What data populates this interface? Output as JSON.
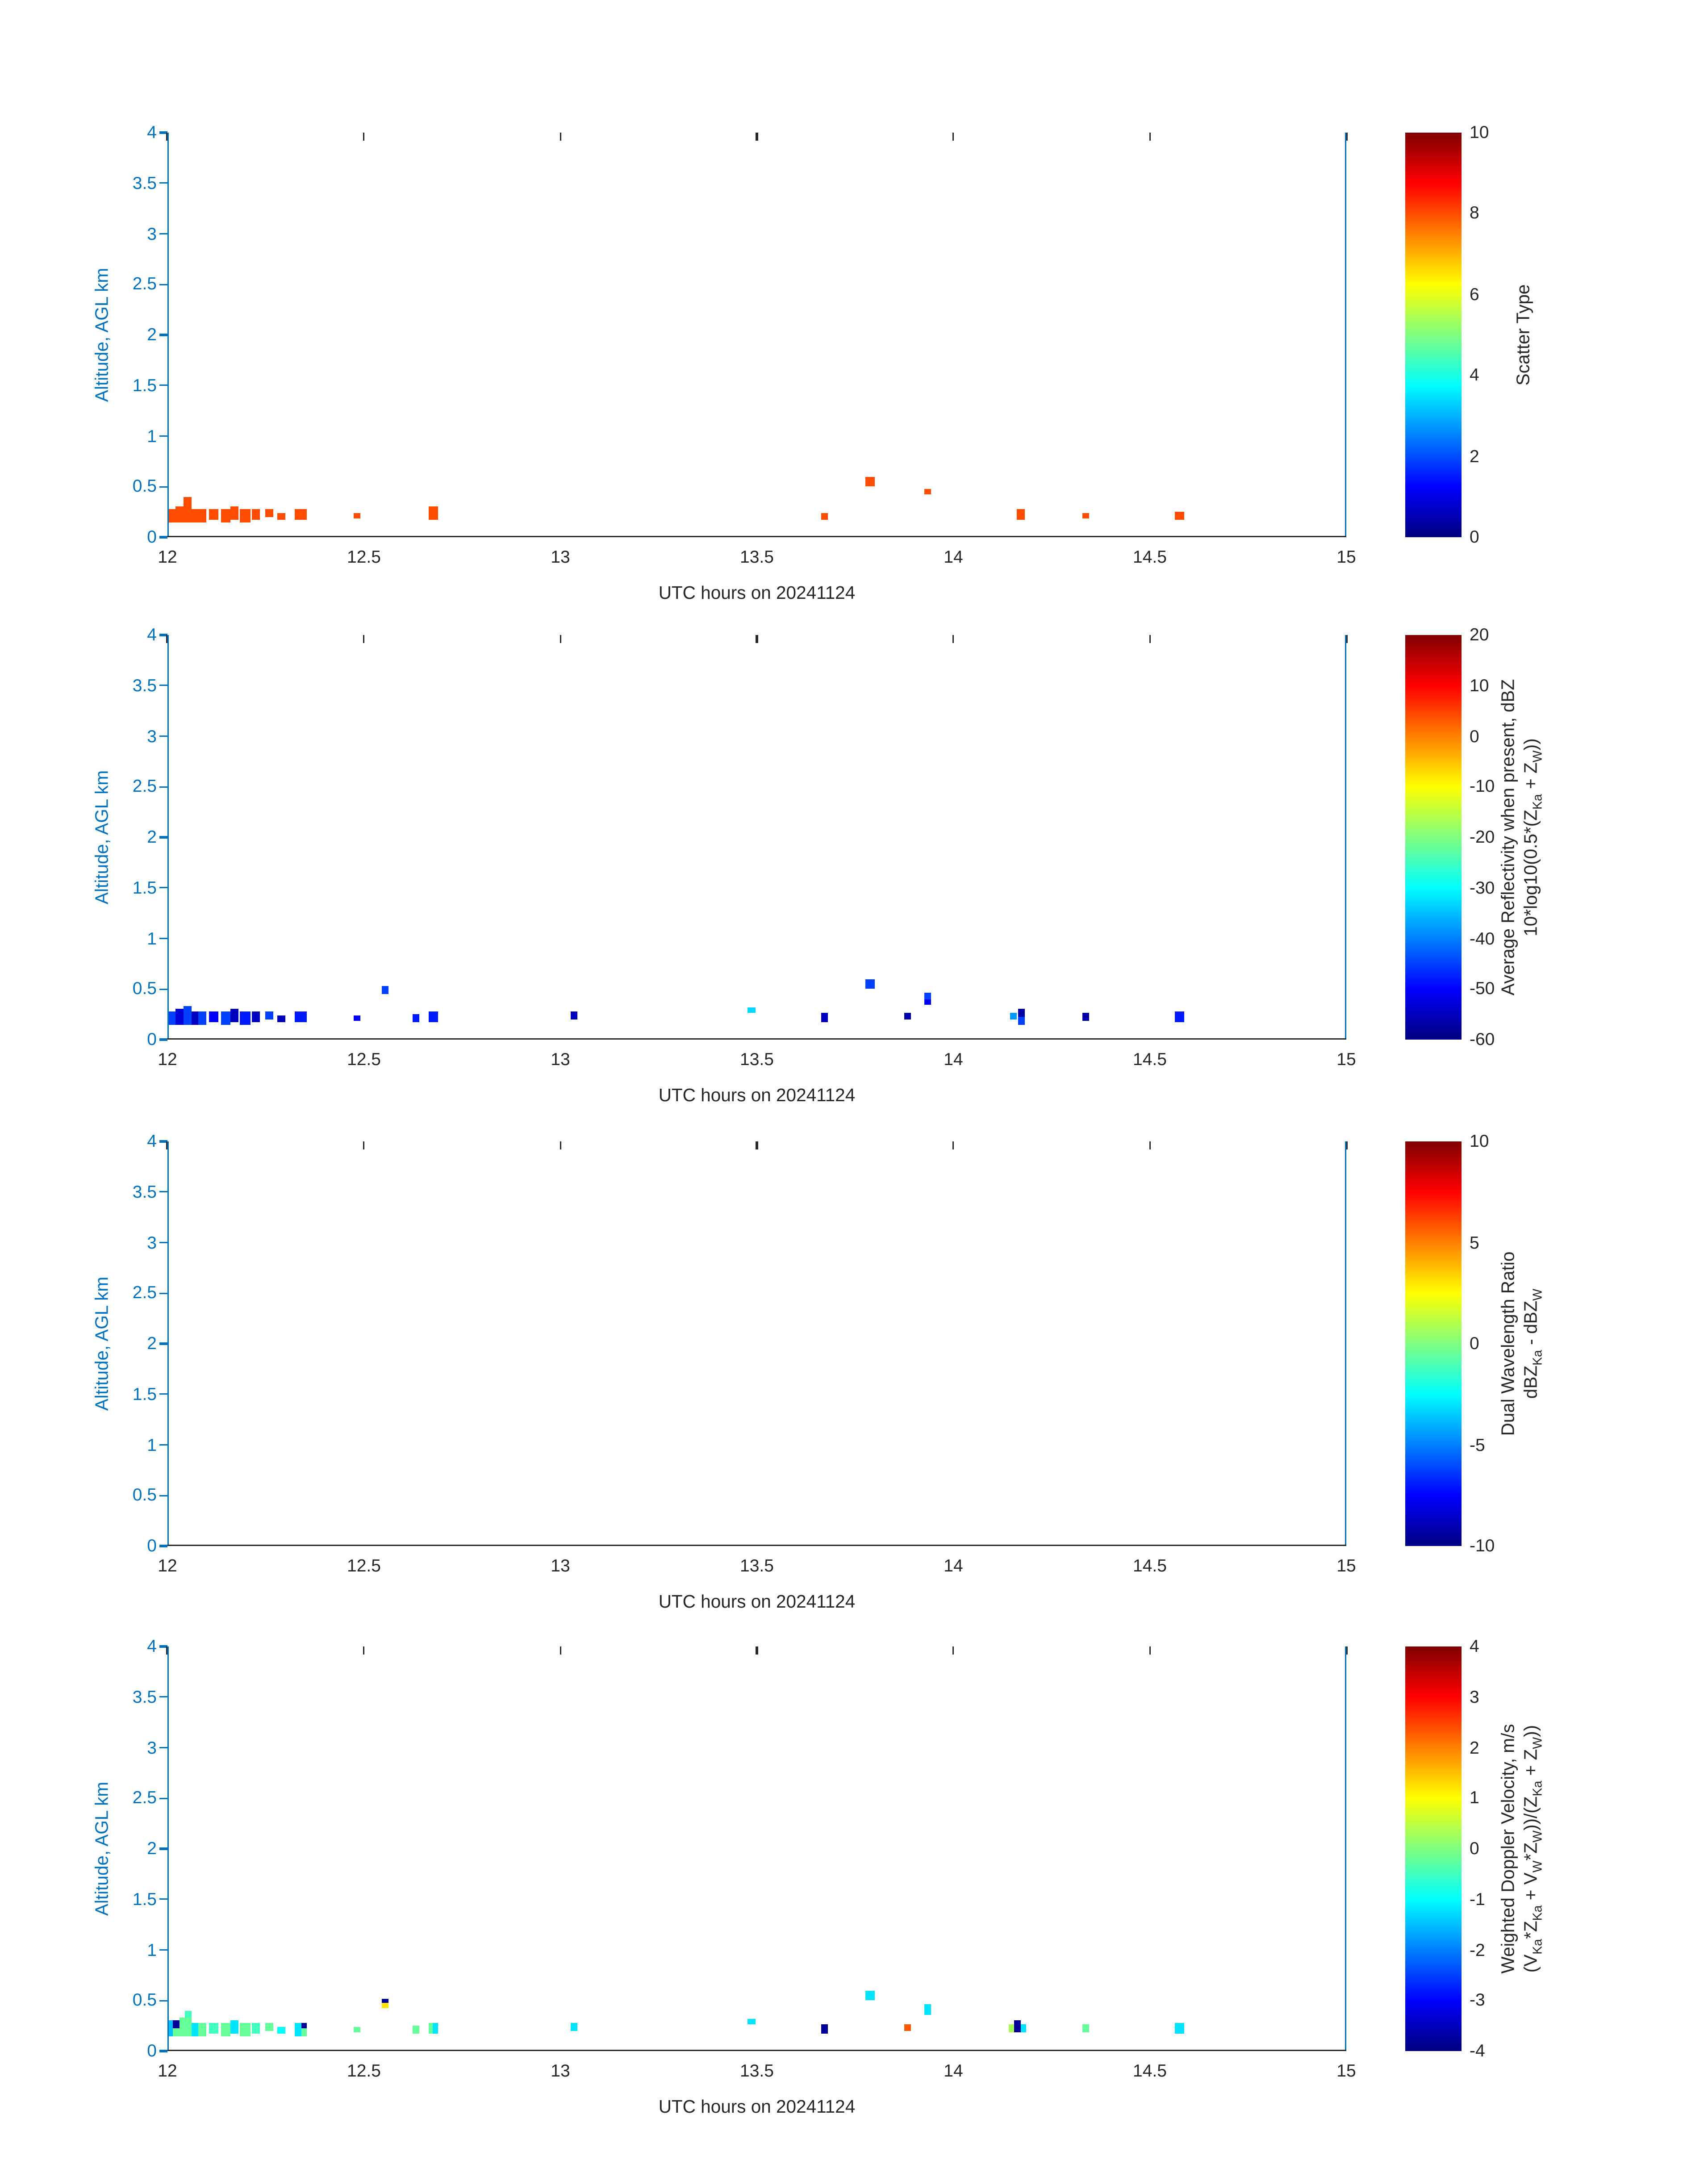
{
  "figure": {
    "xlabel": "UTC hours on 20241124",
    "ylabel": "Altitude, AGL km",
    "xlim": [
      12,
      15
    ],
    "ylim": [
      0,
      4
    ],
    "x_ticks": [
      "12",
      "12.5",
      "13",
      "13.5",
      "14",
      "14.5",
      "15"
    ],
    "y_ticks": [
      "0",
      "0.5",
      "1",
      "1.5",
      "2",
      "2.5",
      "3",
      "3.5",
      "4"
    ],
    "y_axis_color": "#0072bd",
    "x_axis_color": "#262626",
    "background_color": "#ffffff",
    "colormap": "jet"
  },
  "chart_data": [
    {
      "id": "scatter-type",
      "type": "heatmap",
      "xlabel": "UTC hours on 20241124",
      "ylabel": "Altitude, AGL km",
      "xlim": [
        12,
        15
      ],
      "ylim": [
        0,
        4
      ],
      "clim": [
        0,
        10
      ],
      "colorbar_ticks": [
        0,
        2,
        4,
        6,
        8,
        10
      ],
      "colorbar_label_lines": [
        "Scatter Type"
      ],
      "cells": [
        [
          12.0,
          12.02,
          0.14,
          0.28,
          8
        ],
        [
          12.02,
          12.04,
          0.14,
          0.3,
          8
        ],
        [
          12.04,
          12.06,
          0.14,
          0.4,
          8
        ],
        [
          12.06,
          12.08,
          0.14,
          0.28,
          8
        ],
        [
          12.08,
          12.1,
          0.14,
          0.28,
          8
        ],
        [
          12.105,
          12.13,
          0.17,
          0.28,
          8
        ],
        [
          12.135,
          12.16,
          0.14,
          0.28,
          8
        ],
        [
          12.16,
          12.18,
          0.17,
          0.3,
          8
        ],
        [
          12.185,
          12.21,
          0.14,
          0.28,
          8
        ],
        [
          12.215,
          12.235,
          0.17,
          0.28,
          8
        ],
        [
          12.25,
          12.27,
          0.2,
          0.28,
          8
        ],
        [
          12.28,
          12.3,
          0.17,
          0.24,
          8
        ],
        [
          12.325,
          12.355,
          0.17,
          0.28,
          8
        ],
        [
          12.475,
          12.492,
          0.18,
          0.24,
          8
        ],
        [
          12.665,
          12.688,
          0.17,
          0.3,
          8
        ],
        [
          13.665,
          13.682,
          0.17,
          0.24,
          8
        ],
        [
          13.775,
          13.8,
          0.5,
          0.6,
          8
        ],
        [
          13.925,
          13.942,
          0.42,
          0.48,
          8
        ],
        [
          14.16,
          14.182,
          0.17,
          0.28,
          8
        ],
        [
          14.328,
          14.345,
          0.18,
          0.24,
          8
        ],
        [
          14.565,
          14.588,
          0.17,
          0.25,
          8
        ]
      ]
    },
    {
      "id": "reflectivity",
      "type": "heatmap",
      "xlabel": "UTC hours on 20241124",
      "ylabel": "Altitude, AGL km",
      "xlim": [
        12,
        15
      ],
      "ylim": [
        0,
        4
      ],
      "clim": [
        -60,
        20
      ],
      "colorbar_ticks": [
        -60,
        -50,
        -40,
        -30,
        -20,
        -10,
        0,
        10,
        20
      ],
      "colorbar_label_lines": [
        "Average Reflectivity when present, dBZ",
        "10*log10(0.5*(Z_Ka + Z_W))"
      ],
      "cells": [
        [
          12.0,
          12.02,
          0.14,
          0.28,
          -45
        ],
        [
          12.02,
          12.04,
          0.14,
          0.3,
          -53
        ],
        [
          12.04,
          12.06,
          0.14,
          0.33,
          -45
        ],
        [
          12.06,
          12.08,
          0.14,
          0.28,
          -55
        ],
        [
          12.08,
          12.1,
          0.14,
          0.28,
          -45
        ],
        [
          12.105,
          12.13,
          0.17,
          0.28,
          -50
        ],
        [
          12.135,
          12.16,
          0.14,
          0.28,
          -45
        ],
        [
          12.16,
          12.18,
          0.17,
          0.3,
          -55
        ],
        [
          12.185,
          12.21,
          0.14,
          0.28,
          -48
        ],
        [
          12.215,
          12.235,
          0.17,
          0.28,
          -55
        ],
        [
          12.25,
          12.27,
          0.2,
          0.28,
          -45
        ],
        [
          12.28,
          12.3,
          0.17,
          0.24,
          -55
        ],
        [
          12.325,
          12.355,
          0.17,
          0.28,
          -48
        ],
        [
          12.475,
          12.492,
          0.18,
          0.24,
          -50
        ],
        [
          12.545,
          12.562,
          0.45,
          0.53,
          -45
        ],
        [
          12.625,
          12.642,
          0.17,
          0.25,
          -48
        ],
        [
          12.665,
          12.688,
          0.17,
          0.28,
          -48
        ],
        [
          13.025,
          13.042,
          0.2,
          0.28,
          -55
        ],
        [
          13.475,
          13.495,
          0.26,
          0.32,
          -33
        ],
        [
          13.665,
          13.682,
          0.17,
          0.26,
          -55
        ],
        [
          13.775,
          13.8,
          0.5,
          0.6,
          -45
        ],
        [
          13.875,
          13.892,
          0.2,
          0.26,
          -57
        ],
        [
          13.925,
          13.942,
          0.4,
          0.47,
          -45
        ],
        [
          13.925,
          13.942,
          0.34,
          0.4,
          -50
        ],
        [
          14.145,
          14.162,
          0.2,
          0.26,
          -38
        ],
        [
          14.165,
          14.182,
          0.22,
          0.3,
          -57
        ],
        [
          14.165,
          14.182,
          0.14,
          0.22,
          -45
        ],
        [
          14.328,
          14.345,
          0.18,
          0.26,
          -57
        ],
        [
          14.565,
          14.588,
          0.17,
          0.28,
          -48
        ]
      ]
    },
    {
      "id": "dual-wavelength-ratio",
      "type": "heatmap",
      "xlabel": "UTC hours on 20241124",
      "ylabel": "Altitude, AGL km",
      "xlim": [
        12,
        15
      ],
      "ylim": [
        0,
        4
      ],
      "clim": [
        -10,
        10
      ],
      "colorbar_ticks": [
        -10,
        -5,
        0,
        5,
        10
      ],
      "colorbar_label_lines": [
        "Dual Wavelength Ratio",
        "dBZ_Ka - dBZ_W"
      ],
      "cells": []
    },
    {
      "id": "doppler-velocity",
      "type": "heatmap",
      "xlabel": "UTC hours on 20241124",
      "ylabel": "Altitude, AGL km",
      "xlim": [
        12,
        15
      ],
      "ylim": [
        0,
        4
      ],
      "clim": [
        -4,
        4
      ],
      "colorbar_ticks": [
        -4,
        -3,
        -2,
        -1,
        0,
        1,
        2,
        3,
        4
      ],
      "colorbar_label_lines": [
        "Weighted Doppler Velocity, m/s",
        "(V_Ka*Z_Ka + V_W*Z_W))/(Z_Ka + Z_W))"
      ],
      "cells": [
        [
          12.0,
          12.015,
          0.14,
          0.3,
          -1.5
        ],
        [
          12.015,
          12.03,
          0.22,
          0.3,
          -3.8
        ],
        [
          12.015,
          12.03,
          0.14,
          0.22,
          -0.2
        ],
        [
          12.03,
          12.06,
          0.14,
          0.33,
          -0.2
        ],
        [
          12.045,
          12.06,
          0.33,
          0.4,
          -0.5
        ],
        [
          12.06,
          12.08,
          0.14,
          0.28,
          -1.2
        ],
        [
          12.08,
          12.1,
          0.14,
          0.28,
          -0.2
        ],
        [
          12.105,
          12.13,
          0.17,
          0.28,
          -0.5
        ],
        [
          12.135,
          12.16,
          0.14,
          0.28,
          -0.2
        ],
        [
          12.16,
          12.18,
          0.17,
          0.3,
          -1.2
        ],
        [
          12.185,
          12.21,
          0.14,
          0.28,
          -0.2
        ],
        [
          12.215,
          12.235,
          0.17,
          0.28,
          -0.5
        ],
        [
          12.25,
          12.27,
          0.2,
          0.28,
          -0.2
        ],
        [
          12.28,
          12.3,
          0.17,
          0.24,
          -1.0
        ],
        [
          12.325,
          12.34,
          0.14,
          0.28,
          -1.2
        ],
        [
          12.34,
          12.355,
          0.22,
          0.28,
          -3.8
        ],
        [
          12.34,
          12.355,
          0.14,
          0.22,
          -0.2
        ],
        [
          12.475,
          12.492,
          0.18,
          0.24,
          -0.2
        ],
        [
          12.545,
          12.562,
          0.42,
          0.48,
          1.2
        ],
        [
          12.545,
          12.562,
          0.48,
          0.52,
          -3.8
        ],
        [
          12.625,
          12.642,
          0.17,
          0.25,
          -0.2
        ],
        [
          12.665,
          12.676,
          0.17,
          0.28,
          -0.2
        ],
        [
          12.676,
          12.688,
          0.17,
          0.28,
          -1.2
        ],
        [
          13.025,
          13.042,
          0.2,
          0.28,
          -1.2
        ],
        [
          13.475,
          13.495,
          0.26,
          0.32,
          -1.2
        ],
        [
          13.665,
          13.682,
          0.17,
          0.26,
          -3.8
        ],
        [
          13.775,
          13.8,
          0.5,
          0.6,
          -1.2
        ],
        [
          13.875,
          13.892,
          0.2,
          0.26,
          2.3
        ],
        [
          13.925,
          13.942,
          0.36,
          0.47,
          -1.2
        ],
        [
          14.14,
          14.155,
          0.18,
          0.26,
          0.3
        ],
        [
          14.155,
          14.17,
          0.18,
          0.3,
          -3.8
        ],
        [
          14.17,
          14.185,
          0.18,
          0.26,
          -1.2
        ],
        [
          14.328,
          14.345,
          0.18,
          0.26,
          -0.2
        ],
        [
          14.565,
          14.588,
          0.17,
          0.28,
          -1.2
        ]
      ]
    }
  ]
}
